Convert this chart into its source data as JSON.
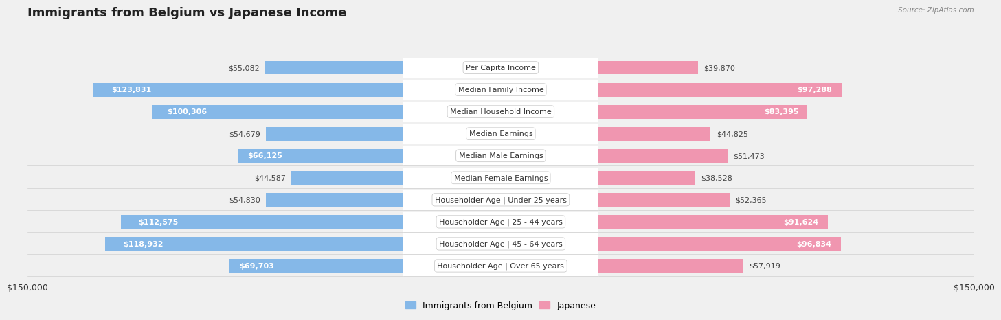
{
  "title": "Immigrants from Belgium vs Japanese Income",
  "source": "Source: ZipAtlas.com",
  "categories": [
    "Per Capita Income",
    "Median Family Income",
    "Median Household Income",
    "Median Earnings",
    "Median Male Earnings",
    "Median Female Earnings",
    "Householder Age | Under 25 years",
    "Householder Age | 25 - 44 years",
    "Householder Age | 45 - 64 years",
    "Householder Age | Over 65 years"
  ],
  "belgium_values": [
    55082,
    123831,
    100306,
    54679,
    66125,
    44587,
    54830,
    112575,
    118932,
    69703
  ],
  "japanese_values": [
    39870,
    97288,
    83395,
    44825,
    51473,
    38528,
    52365,
    91624,
    96834,
    57919
  ],
  "belgium_labels": [
    "$55,082",
    "$123,831",
    "$100,306",
    "$54,679",
    "$66,125",
    "$44,587",
    "$54,830",
    "$112,575",
    "$118,932",
    "$69,703"
  ],
  "japanese_labels": [
    "$39,870",
    "$97,288",
    "$83,395",
    "$44,825",
    "$51,473",
    "$38,528",
    "$52,365",
    "$91,624",
    "$96,834",
    "$57,919"
  ],
  "belgium_color": "#85b8e8",
  "japanese_color": "#f096b0",
  "max_value": 150000,
  "xlabel_left": "$150,000",
  "xlabel_right": "$150,000",
  "legend_belgium": "Immigrants from Belgium",
  "legend_japanese": "Japanese",
  "background_color": "#f0f0f0",
  "row_bg_color": "#ffffff",
  "row_border_color": "#d0d0d0",
  "bar_height": 0.62,
  "inside_label_threshold": 60000,
  "title_fontsize": 13,
  "label_fontsize": 8,
  "cat_fontsize": 8
}
